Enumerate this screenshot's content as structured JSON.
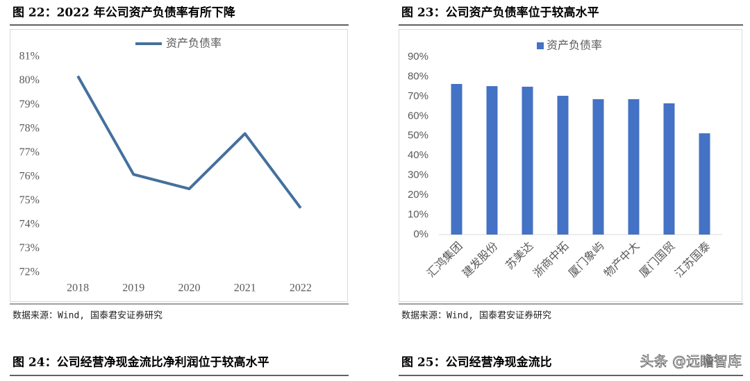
{
  "chart_data": [
    {
      "type": "line",
      "title": "图 22：2022 年公司资产负债率有所下降",
      "source": "数据来源：Wind, 国泰君安证券研究",
      "categories": [
        "2018",
        "2019",
        "2020",
        "2021",
        "2022"
      ],
      "series": [
        {
          "name": "资产负债率",
          "color": "#44709d",
          "values": [
            80.2,
            76.1,
            75.5,
            77.8,
            74.7
          ]
        }
      ],
      "ylim": [
        72,
        81
      ],
      "yticks": [
        {
          "value": 72,
          "label": "72%"
        },
        {
          "value": 73,
          "label": "73%"
        },
        {
          "value": 74,
          "label": "74%"
        },
        {
          "value": 75,
          "label": "75%"
        },
        {
          "value": 76,
          "label": "76%"
        },
        {
          "value": 77,
          "label": "77%"
        },
        {
          "value": 78,
          "label": "78%"
        },
        {
          "value": 79,
          "label": "79%"
        },
        {
          "value": 80,
          "label": "80%"
        },
        {
          "value": 81,
          "label": "81%"
        }
      ],
      "legend": "top"
    },
    {
      "type": "bar",
      "title": "图 23：公司资产负债率位于较高水平",
      "source": "数据来源：Wind, 国泰君安证券研究",
      "categories": [
        "汇鸿集团",
        "建发股份",
        "苏美达",
        "浙商中拓",
        "厦门象屿",
        "物产中大",
        "厦门国贸",
        "江苏国泰"
      ],
      "series": [
        {
          "name": "资产负债率",
          "color": "#4472c4",
          "values": [
            76.3,
            75.2,
            74.9,
            70.3,
            68.6,
            68.6,
            66.5,
            51.3
          ]
        }
      ],
      "ylim": [
        0,
        90
      ],
      "yticks": [
        {
          "value": 0,
          "label": "0%"
        },
        {
          "value": 10,
          "label": "10%"
        },
        {
          "value": 20,
          "label": "20%"
        },
        {
          "value": 30,
          "label": "30%"
        },
        {
          "value": 40,
          "label": "40%"
        },
        {
          "value": 50,
          "label": "50%"
        },
        {
          "value": 60,
          "label": "60%"
        },
        {
          "value": 70,
          "label": "70%"
        },
        {
          "value": 80,
          "label": "80%"
        },
        {
          "value": 90,
          "label": "90%"
        }
      ],
      "legend": "top"
    }
  ],
  "next_headers": [
    "图 24：公司经营净现金流比净利润位于较高水平",
    "图 25：公司经营净现金流比"
  ],
  "watermark": "头条 @远瞻智库"
}
